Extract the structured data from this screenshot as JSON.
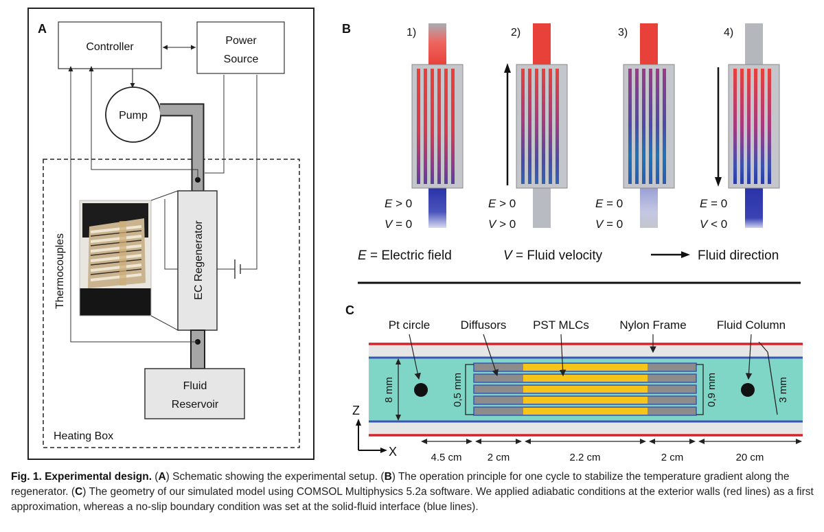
{
  "panelA": {
    "letter": "A",
    "controller": "Controller",
    "power_line1": "Power",
    "power_line2": "Source",
    "pump": "Pump",
    "regenerator": "EC Regenerator",
    "thermocouples": "Thermocouples",
    "reservoir_line1": "Fluid",
    "reservoir_line2": "Reservoir",
    "heating_box": "Heating Box"
  },
  "panelB": {
    "letter": "B",
    "stages": [
      {
        "num": "1)",
        "e_var": "E",
        "e_rel": " > 0",
        "v_var": "V",
        "v_rel": " = 0"
      },
      {
        "num": "2)",
        "e_var": "E",
        "e_rel": " > 0",
        "v_var": "V",
        "v_rel": " > 0"
      },
      {
        "num": "3)",
        "e_var": "E",
        "e_rel": " = 0",
        "v_var": "V",
        "v_rel": " = 0"
      },
      {
        "num": "4)",
        "e_var": "E",
        "e_rel": " = 0",
        "v_var": "V",
        "v_rel": " < 0"
      }
    ],
    "legend_e_var": "E",
    "legend_e_text": " = Electric field",
    "legend_v_var": "V",
    "legend_v_text": " = Fluid velocity",
    "legend_dir_text": "Fluid direction"
  },
  "panelC": {
    "letter": "C",
    "labels": {
      "pt_circle": "Pt circle",
      "diffusors": "Diffusors",
      "pst_mlcs": "PST MLCs",
      "nylon_frame": "Nylon Frame",
      "fluid_column": "Fluid Column"
    },
    "dims": {
      "h8": "8 mm",
      "h05": "0,5 mm",
      "h09": "0,9 mm",
      "h3": "3 mm",
      "w45": "4.5 cm",
      "w2a": "2 cm",
      "w22": "2.2 cm",
      "w2b": "2 cm",
      "w20": "20 cm"
    },
    "axis_z": "Z",
    "axis_x": "X"
  },
  "caption": {
    "fig_label": "Fig. 1. Experimental design.",
    "open_a": " (",
    "a": "A",
    "text_a": ") Schematic showing the experimental setup. (",
    "b": "B",
    "text_b": ") The operation principle for one cycle to stabilize the temperature gradient along the regenerator. (",
    "c": "C",
    "text_c": ") The geometry of our simulated model using COMSOL Multiphysics 5.2a software. We applied adiabatic conditions at the exterior walls (red lines) as a first approximation, whereas a no-slip boundary condition was set at the solid-fluid interface (blue lines)."
  },
  "colors": {
    "hot": "#e8413a",
    "cold": "#2a33a8",
    "mid": "#8a3a8f",
    "fluid": "#80d6c6",
    "wall_red": "#d8232a",
    "wall_blue": "#3a56b4",
    "pst": "#f7c51a",
    "diffusor": "#8c8c8c",
    "pipe": "#a6a6a6"
  }
}
